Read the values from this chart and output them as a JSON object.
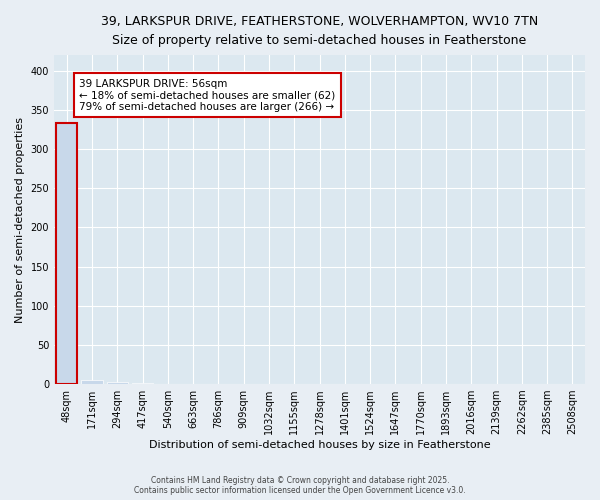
{
  "title": "39, LARKSPUR DRIVE, FEATHERSTONE, WOLVERHAMPTON, WV10 7TN",
  "subtitle": "Size of property relative to semi-detached houses in Featherstone",
  "xlabel": "Distribution of semi-detached houses by size in Featherstone",
  "ylabel": "Number of semi-detached properties",
  "categories": [
    "48sqm",
    "171sqm",
    "294sqm",
    "417sqm",
    "540sqm",
    "663sqm",
    "786sqm",
    "909sqm",
    "1032sqm",
    "1155sqm",
    "1278sqm",
    "1401sqm",
    "1524sqm",
    "1647sqm",
    "1770sqm",
    "1893sqm",
    "2016sqm",
    "2139sqm",
    "2262sqm",
    "2385sqm",
    "2508sqm"
  ],
  "values": [
    333,
    5,
    2,
    1,
    0,
    0,
    0,
    0,
    0,
    0,
    0,
    0,
    0,
    0,
    0,
    0,
    0,
    0,
    0,
    0,
    0
  ],
  "highlight_index": 0,
  "bar_color": "#c8d8ea",
  "highlight_outline_color": "#cc0000",
  "ylim": [
    0,
    420
  ],
  "yticks": [
    0,
    50,
    100,
    150,
    200,
    250,
    300,
    350,
    400
  ],
  "annotation_text": "39 LARKSPUR DRIVE: 56sqm\n← 18% of semi-detached houses are smaller (62)\n79% of semi-detached houses are larger (266) →",
  "footer_text": "Contains HM Land Registry data © Crown copyright and database right 2025.\nContains public sector information licensed under the Open Government Licence v3.0.",
  "bg_color": "#e8eef4",
  "plot_bg_color": "#dce8f0",
  "title_fontsize": 9,
  "subtitle_fontsize": 8.5,
  "axis_label_fontsize": 8,
  "tick_fontsize": 7,
  "annotation_fontsize": 7.5
}
